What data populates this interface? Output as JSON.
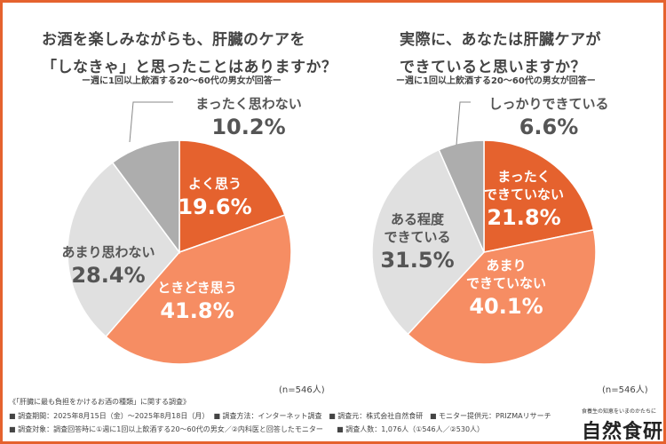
{
  "charts": [
    {
      "title_line1": "お酒を楽しみながらも、肝臓のケアを",
      "title_line2": "「しなきゃ」と思ったことはありますか？",
      "subtitle": "ー週に1回以上飲酒する20〜60代の男女が回答ー",
      "n_label": "(n=546人)"
    },
    {
      "title_line1": "実際に、あなたは肝臓ケアが",
      "title_line2": "できていると思いますか？",
      "subtitle": "ー週に1回以上飲酒する20〜60代の男女が回答ー",
      "n_label": "(n=546人)"
    }
  ],
  "chart_data": [
    {
      "type": "pie",
      "title": "お酒を楽しみながらも、肝臓のケアを「しなきゃ」と思ったことはありますか？",
      "slices": [
        {
          "label": "よく思う",
          "value": 19.6,
          "display": "19.6%",
          "color": "#E5622E",
          "text_color": "#ffffff"
        },
        {
          "label": "ときどき思う",
          "value": 41.8,
          "display": "41.8%",
          "color": "#F68D63",
          "text_color": "#ffffff"
        },
        {
          "label": "あまり思わない",
          "value": 28.4,
          "display": "28.4%",
          "color": "#E0E0E0",
          "text_color": "#555555"
        },
        {
          "label": "まったく思わない",
          "value": 10.2,
          "display": "10.2%",
          "color": "#ADADAD",
          "text_color": "#555555"
        }
      ]
    },
    {
      "type": "pie",
      "title": "実際に、あなたは肝臓ケアができていると思いますか？",
      "slices": [
        {
          "label": "まったく\nできていない",
          "value": 21.8,
          "display": "21.8%",
          "color": "#E5622E",
          "text_color": "#ffffff"
        },
        {
          "label": "あまり\nできていない",
          "value": 40.1,
          "display": "40.1%",
          "color": "#F68D63",
          "text_color": "#ffffff"
        },
        {
          "label": "ある程度\nできている",
          "value": 31.5,
          "display": "31.5%",
          "color": "#E0E0E0",
          "text_color": "#555555"
        },
        {
          "label": "しっかりできている",
          "value": 6.6,
          "display": "6.6%",
          "color": "#ADADAD",
          "text_color": "#555555"
        }
      ]
    }
  ],
  "footer": {
    "survey_title": "《「肝臓に最も負担をかけるお酒の種類」に関する調査》",
    "line2": [
      "■ 調査期間：2025年8月15日（金）〜2025年8月18日（月）",
      "■ 調査方法：インターネット調査",
      "■ 調査元：株式会社自然食研",
      "■ モニター提供元：PRIZMAリサーチ"
    ],
    "line3": [
      "■ 調査対象：調査回答時に①週に1回以上飲酒する20〜60代の男女／②内科医と回答したモニター",
      "■ 調査人数：1,076人（①546人／②530人）"
    ]
  },
  "brand": {
    "tagline": "食養生の知恵をいまのかたちに",
    "name": "自然食研"
  }
}
